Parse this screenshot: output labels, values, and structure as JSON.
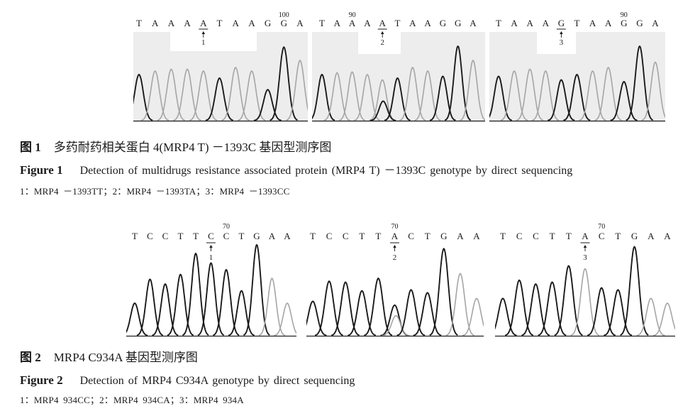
{
  "colors": {
    "trace_black": "#1a1a1a",
    "trace_grey": "#a5a5a5",
    "panel_background": "#ededed"
  },
  "figure1": {
    "panels": [
      {
        "bases": [
          "T",
          "A",
          "A",
          "A",
          "A",
          "T",
          "A",
          "A",
          "G",
          "G",
          "A"
        ],
        "position_label": {
          "text": "100",
          "base_index": 9
        },
        "marker": {
          "text": "1",
          "base_index": 4
        },
        "peaks": [
          {
            "base_index": 0,
            "height": 0.52,
            "color": "#1a1a1a"
          },
          {
            "base_index": 1,
            "height": 0.56,
            "color": "#a5a5a5"
          },
          {
            "base_index": 2,
            "height": 0.58,
            "color": "#a5a5a5"
          },
          {
            "base_index": 3,
            "height": 0.58,
            "color": "#a5a5a5"
          },
          {
            "base_index": 4,
            "height": 0.56,
            "color": "#a5a5a5"
          },
          {
            "base_index": 5,
            "height": 0.48,
            "color": "#1a1a1a"
          },
          {
            "base_index": 6,
            "height": 0.6,
            "color": "#a5a5a5"
          },
          {
            "base_index": 7,
            "height": 0.56,
            "color": "#a5a5a5"
          },
          {
            "base_index": 8,
            "height": 0.35,
            "color": "#1a1a1a"
          },
          {
            "base_index": 9,
            "height": 0.83,
            "color": "#1a1a1a"
          },
          {
            "base_index": 10,
            "height": 0.68,
            "color": "#a5a5a5"
          }
        ]
      },
      {
        "bases": [
          "T",
          "A",
          "A",
          "A",
          "A",
          "T",
          "A",
          "A",
          "G",
          "G",
          "A"
        ],
        "position_label": {
          "text": "90",
          "base_index": 2
        },
        "marker": {
          "text": "2",
          "base_index": 4
        },
        "peaks": [
          {
            "base_index": 0,
            "height": 0.52,
            "color": "#1a1a1a"
          },
          {
            "base_index": 1,
            "height": 0.54,
            "color": "#a5a5a5"
          },
          {
            "base_index": 2,
            "height": 0.55,
            "color": "#a5a5a5"
          },
          {
            "base_index": 3,
            "height": 0.52,
            "color": "#a5a5a5"
          },
          {
            "base_index": 4,
            "height": 0.46,
            "color": "#a5a5a5"
          },
          {
            "base_index": 4.05,
            "height": 0.22,
            "color": "#1a1a1a"
          },
          {
            "base_index": 5,
            "height": 0.48,
            "color": "#1a1a1a"
          },
          {
            "base_index": 6,
            "height": 0.6,
            "color": "#a5a5a5"
          },
          {
            "base_index": 7,
            "height": 0.56,
            "color": "#a5a5a5"
          },
          {
            "base_index": 8,
            "height": 0.5,
            "color": "#1a1a1a"
          },
          {
            "base_index": 9,
            "height": 0.84,
            "color": "#1a1a1a"
          },
          {
            "base_index": 10,
            "height": 0.68,
            "color": "#a5a5a5"
          }
        ]
      },
      {
        "bases": [
          "T",
          "A",
          "A",
          "A",
          "G",
          "T",
          "A",
          "A",
          "G",
          "G",
          "A"
        ],
        "position_label": {
          "text": "90",
          "base_index": 8
        },
        "marker": {
          "text": "3",
          "base_index": 4
        },
        "peaks": [
          {
            "base_index": 0,
            "height": 0.5,
            "color": "#1a1a1a"
          },
          {
            "base_index": 1,
            "height": 0.56,
            "color": "#a5a5a5"
          },
          {
            "base_index": 2,
            "height": 0.58,
            "color": "#a5a5a5"
          },
          {
            "base_index": 3,
            "height": 0.56,
            "color": "#a5a5a5"
          },
          {
            "base_index": 4,
            "height": 0.46,
            "color": "#1a1a1a"
          },
          {
            "base_index": 5,
            "height": 0.52,
            "color": "#1a1a1a"
          },
          {
            "base_index": 6,
            "height": 0.56,
            "color": "#a5a5a5"
          },
          {
            "base_index": 7,
            "height": 0.6,
            "color": "#a5a5a5"
          },
          {
            "base_index": 8,
            "height": 0.44,
            "color": "#1a1a1a"
          },
          {
            "base_index": 9,
            "height": 0.84,
            "color": "#1a1a1a"
          },
          {
            "base_index": 10,
            "height": 0.66,
            "color": "#a5a5a5"
          }
        ]
      }
    ],
    "caption_cn": {
      "label": "图 1",
      "text": "多药耐药相关蛋白 4(MRP4 T) －1393C 基因型测序图"
    },
    "caption_en": {
      "label": "Figure 1",
      "text": "Detection of multidrugs resistance associated protein (MRP4 T) －1393C genotype by direct sequencing"
    },
    "legend": "1：MRP4 －1393TT；2：MRP4 －1393TA；3：MRP4 －1393CC"
  },
  "figure2": {
    "panels": [
      {
        "bases": [
          "T",
          "C",
          "C",
          "T",
          "T",
          "C",
          "C",
          "T",
          "G",
          "A",
          "A"
        ],
        "position_label": {
          "text": "70",
          "base_index": 6
        },
        "marker": {
          "text": "1",
          "base_index": 5
        },
        "peaks": [
          {
            "base_index": 0,
            "height": 0.34,
            "color": "#1a1a1a"
          },
          {
            "base_index": 1,
            "height": 0.59,
            "color": "#1a1a1a"
          },
          {
            "base_index": 2,
            "height": 0.54,
            "color": "#1a1a1a"
          },
          {
            "base_index": 3,
            "height": 0.64,
            "color": "#1a1a1a"
          },
          {
            "base_index": 4,
            "height": 0.86,
            "color": "#1a1a1a"
          },
          {
            "base_index": 5,
            "height": 0.76,
            "color": "#1a1a1a"
          },
          {
            "base_index": 6,
            "height": 0.69,
            "color": "#1a1a1a"
          },
          {
            "base_index": 7,
            "height": 0.47,
            "color": "#1a1a1a"
          },
          {
            "base_index": 8,
            "height": 0.95,
            "color": "#1a1a1a"
          },
          {
            "base_index": 9,
            "height": 0.6,
            "color": "#a5a5a5"
          },
          {
            "base_index": 10,
            "height": 0.34,
            "color": "#a5a5a5"
          }
        ]
      },
      {
        "bases": [
          "T",
          "C",
          "C",
          "T",
          "T",
          "A",
          "C",
          "T",
          "G",
          "A",
          "A"
        ],
        "position_label": {
          "text": "70",
          "base_index": 5
        },
        "marker": {
          "text": "2",
          "base_index": 5
        },
        "peaks": [
          {
            "base_index": 0,
            "height": 0.36,
            "color": "#1a1a1a"
          },
          {
            "base_index": 1,
            "height": 0.57,
            "color": "#1a1a1a"
          },
          {
            "base_index": 2,
            "height": 0.56,
            "color": "#1a1a1a"
          },
          {
            "base_index": 3,
            "height": 0.47,
            "color": "#1a1a1a"
          },
          {
            "base_index": 4,
            "height": 0.6,
            "color": "#1a1a1a"
          },
          {
            "base_index": 5,
            "height": 0.32,
            "color": "#1a1a1a"
          },
          {
            "base_index": 5.08,
            "height": 0.21,
            "color": "#a5a5a5"
          },
          {
            "base_index": 6,
            "height": 0.48,
            "color": "#1a1a1a"
          },
          {
            "base_index": 7,
            "height": 0.45,
            "color": "#1a1a1a"
          },
          {
            "base_index": 8,
            "height": 0.91,
            "color": "#1a1a1a"
          },
          {
            "base_index": 9,
            "height": 0.65,
            "color": "#a5a5a5"
          },
          {
            "base_index": 10,
            "height": 0.39,
            "color": "#a5a5a5"
          }
        ]
      },
      {
        "bases": [
          "T",
          "C",
          "C",
          "T",
          "T",
          "A",
          "C",
          "T",
          "G",
          "A",
          "A"
        ],
        "position_label": {
          "text": "70",
          "base_index": 6
        },
        "marker": {
          "text": "3",
          "base_index": 5
        },
        "peaks": [
          {
            "base_index": 0,
            "height": 0.39,
            "color": "#1a1a1a"
          },
          {
            "base_index": 1,
            "height": 0.58,
            "color": "#1a1a1a"
          },
          {
            "base_index": 2,
            "height": 0.54,
            "color": "#1a1a1a"
          },
          {
            "base_index": 3,
            "height": 0.56,
            "color": "#1a1a1a"
          },
          {
            "base_index": 4,
            "height": 0.73,
            "color": "#1a1a1a"
          },
          {
            "base_index": 5,
            "height": 0.7,
            "color": "#a5a5a5"
          },
          {
            "base_index": 6,
            "height": 0.5,
            "color": "#1a1a1a"
          },
          {
            "base_index": 7,
            "height": 0.48,
            "color": "#1a1a1a"
          },
          {
            "base_index": 8,
            "height": 0.93,
            "color": "#1a1a1a"
          },
          {
            "base_index": 9,
            "height": 0.39,
            "color": "#a5a5a5"
          },
          {
            "base_index": 10,
            "height": 0.34,
            "color": "#a5a5a5"
          }
        ]
      }
    ],
    "caption_cn": {
      "label": "图 2",
      "text": "MRP4 C934A 基因型测序图"
    },
    "caption_en": {
      "label": "Figure 2",
      "text": "Detection of MRP4 C934A genotype by direct sequencing"
    },
    "legend": "1：MRP4 934CC；2：MRP4 934CA；3：MRP4 934A"
  }
}
